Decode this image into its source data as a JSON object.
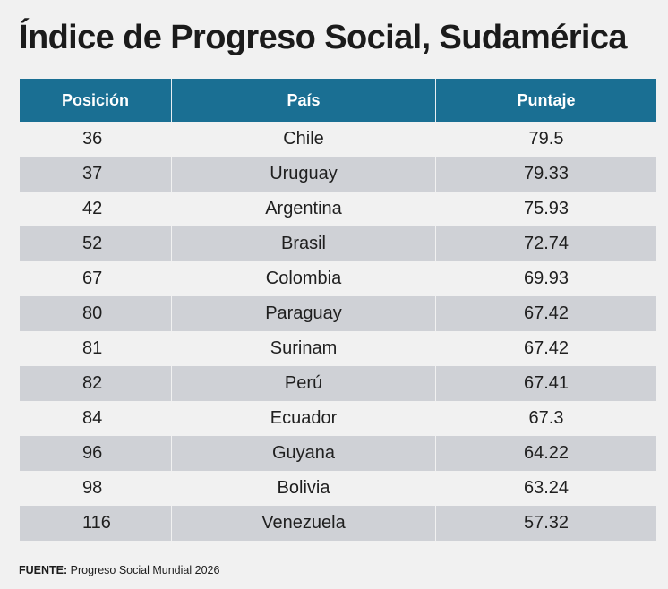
{
  "title": "Índice de Progreso Social, Sudamérica",
  "chart_data": {
    "type": "table",
    "title": "Índice de Progreso Social, Sudamérica",
    "columns": [
      "Posición",
      "País",
      "Puntaje"
    ],
    "rows": [
      {
        "posicion": "36",
        "pais": "Chile",
        "puntaje": "79.5"
      },
      {
        "posicion": "37",
        "pais": "Uruguay",
        "puntaje": "79.33"
      },
      {
        "posicion": "42",
        "pais": "Argentina",
        "puntaje": "75.93"
      },
      {
        "posicion": "52",
        "pais": "Brasil",
        "puntaje": "72.74"
      },
      {
        "posicion": "67",
        "pais": "Colombia",
        "puntaje": "69.93"
      },
      {
        "posicion": "80",
        "pais": "Paraguay",
        "puntaje": "67.42"
      },
      {
        "posicion": "81",
        "pais": "Surinam",
        "puntaje": "67.42"
      },
      {
        "posicion": "82",
        "pais": "Perú",
        "puntaje": "67.41"
      },
      {
        "posicion": "84",
        "pais": "Ecuador",
        "puntaje": "67.3"
      },
      {
        "posicion": "96",
        "pais": "Guyana",
        "puntaje": "64.22"
      },
      {
        "posicion": "98",
        "pais": "Bolivia",
        "puntaje": "63.24"
      },
      {
        "posicion": "116",
        "pais": "Venezuela",
        "puntaje": "57.32"
      }
    ]
  },
  "source": {
    "label": "FUENTE:",
    "text": "Progreso Social Mundial 2026"
  },
  "colors": {
    "header_bg": "#1a6f93",
    "stripe_bg": "#cfd1d6",
    "page_bg": "#f1f1f1"
  }
}
